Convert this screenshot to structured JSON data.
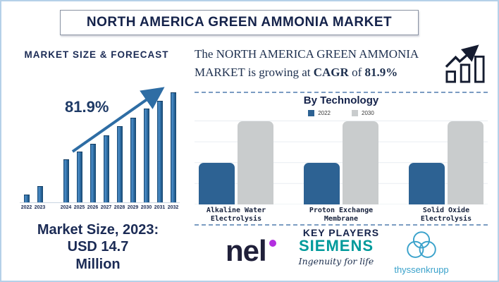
{
  "page": {
    "title": "NORTH AMERICA GREEN AMMONIA MARKET"
  },
  "left_panel": {
    "section_title": "MARKET SIZE & FORECAST",
    "growth_label": "81.9%",
    "market_size_lines": [
      "Market Size, 2023:",
      "USD 14.7",
      "Million"
    ]
  },
  "headline": {
    "part1": "The NORTH AMERICA GREEN AMMONIA MARKET is growing at",
    "cagr_label": "CAGR",
    "of_word": "of",
    "cagr_value": "81.9%"
  },
  "tech_section": {
    "title": "By Technology"
  },
  "key_players": {
    "title": "KEY PLAYERS",
    "logos": [
      {
        "name": "nel",
        "text": "nel",
        "text_color": "#20203a",
        "dot_color": "#b32fe0"
      },
      {
        "name": "siemens",
        "text": "SIEMENS",
        "tagline": "Ingenuity for life",
        "text_color": "#009a9b",
        "tagline_color": "#1d2f4e"
      },
      {
        "name": "thyssenkrupp",
        "text": "thyssenkrupp",
        "color": "#3aa2cb"
      }
    ]
  },
  "chart_data": [
    {
      "type": "bar",
      "title": "MARKET SIZE & FORECAST",
      "categories": [
        "2022",
        "2023",
        "2024",
        "2025",
        "2026",
        "2027",
        "2028",
        "2029",
        "2030",
        "2031",
        "2032"
      ],
      "values_relative_pct": [
        7,
        15,
        39,
        46,
        53,
        61,
        69,
        77,
        85,
        92,
        100
      ],
      "annotation": "81.9%",
      "bar_color": "#2e6da4",
      "axis_note": "y-axis unlabeled; bar heights estimated relative to 2032 = 100",
      "gap_after": "2023",
      "trend_arrow": true
    },
    {
      "type": "bar",
      "title": "By Technology",
      "categories": [
        "Alkaline Water Electrolysis",
        "Proton Exchange Membrane",
        "Solid Oxide Electrolysis"
      ],
      "series": [
        {
          "name": "2022",
          "color": "#2d6293",
          "values_relative_pct": [
            50,
            50,
            50
          ]
        },
        {
          "name": "2030",
          "color": "#c9cccd",
          "values_relative_pct": [
            100,
            100,
            100
          ]
        }
      ],
      "legend_position": "top",
      "grid": true,
      "axis_note": "y-axis unlabeled; heights relative, 2030 = 100"
    }
  ],
  "colors": {
    "navy_text": "#1b2b55",
    "frame_border": "#b5d0e8",
    "forecast_bar_blue": "#2e6da4",
    "tech_bar_2022": "#2d6293",
    "tech_bar_2030": "#c9cccd",
    "dashed_divider": "#7b9cc2",
    "arrow_blue": "#2e6da4"
  }
}
